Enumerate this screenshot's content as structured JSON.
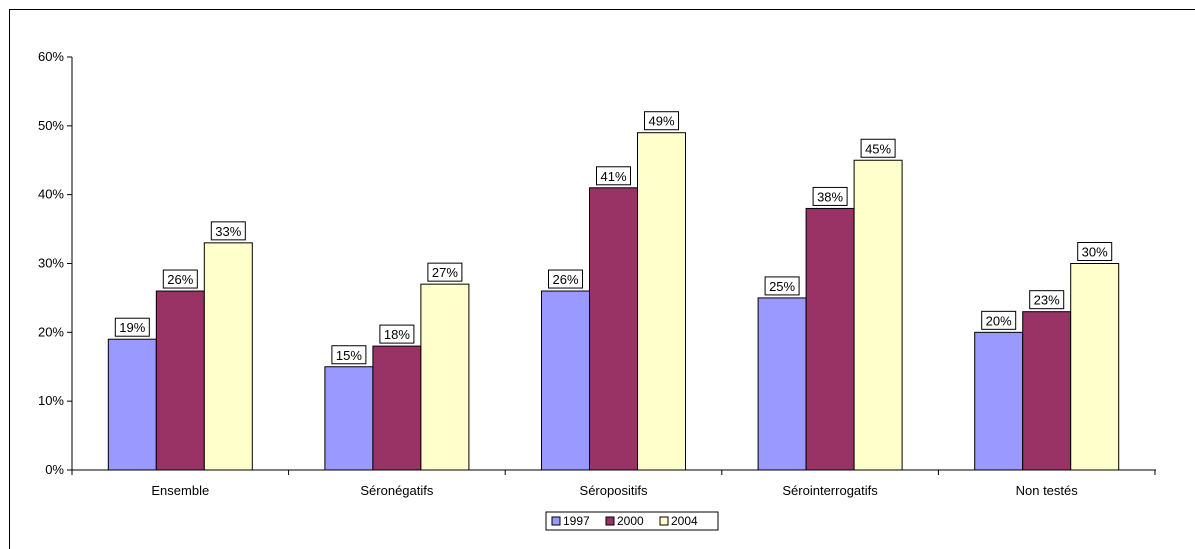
{
  "colors": {
    "series_1997": "#9999ff",
    "series_2000": "#993366",
    "series_2004": "#ffffcc"
  },
  "chart_data": {
    "type": "bar",
    "categories": [
      "Ensemble",
      "Séronégatifs",
      "Séropositifs",
      "Sérointerrogatifs",
      "Non testés"
    ],
    "series": [
      {
        "name": "1997",
        "values": [
          19,
          15,
          26,
          25,
          20
        ]
      },
      {
        "name": "2000",
        "values": [
          26,
          18,
          41,
          38,
          23
        ]
      },
      {
        "name": "2004",
        "values": [
          33,
          27,
          49,
          45,
          30
        ]
      }
    ],
    "ylim": [
      0,
      60
    ],
    "yticks": [
      0,
      10,
      20,
      30,
      40,
      50,
      60
    ],
    "ytick_labels": [
      "0%",
      "10%",
      "20%",
      "30%",
      "40%",
      "50%",
      "60%"
    ],
    "data_labels": [
      [
        "19%",
        "15%",
        "26%",
        "25%",
        "20%"
      ],
      [
        "26%",
        "18%",
        "41%",
        "38%",
        "23%"
      ],
      [
        "33%",
        "27%",
        "49%",
        "45%",
        "30%"
      ]
    ],
    "title": "",
    "xlabel": "",
    "ylabel": "",
    "grid": false,
    "legend_position": "bottom"
  }
}
